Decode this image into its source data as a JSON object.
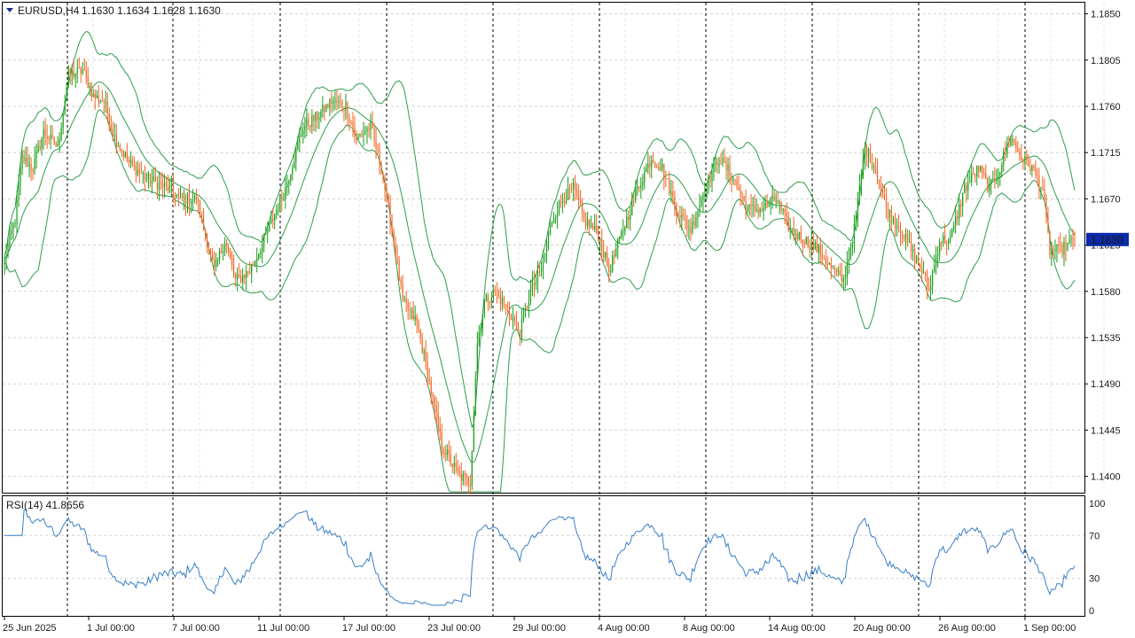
{
  "header": {
    "symbol_tf": "EURUSD,H4",
    "ohlc": "1.1630 1.1634 1.1628 1.1630"
  },
  "rsi": {
    "label": "RSI(14) 41.8656",
    "levels": [
      "100",
      "70",
      "30",
      "0"
    ]
  },
  "price_axis": {
    "labels": [
      "1.1850",
      "1.1805",
      "1.1760",
      "1.1715",
      "1.1670",
      "1.1625",
      "1.1580",
      "1.1535",
      "1.1490",
      "1.1445",
      "1.1400"
    ],
    "current": "1.1630"
  },
  "time_axis": {
    "labels": [
      "25 Jun 2025",
      "1 Jul 00:00",
      "7 Jul 00:00",
      "11 Jul 00:00",
      "17 Jul 00:00",
      "23 Jul 00:00",
      "29 Jul 00:00",
      "4 Aug 00:00",
      "8 Aug 00:00",
      "14 Aug 00:00",
      "20 Aug 00:00",
      "26 Aug 00:00",
      "1 Sep 00:00"
    ]
  },
  "colors": {
    "bull": "#1a9e1a",
    "bear": "#f26522",
    "band": "#2e9e4e",
    "rsi_line": "#3a7fc8",
    "price_tag_bg": "#0a2aa8",
    "frame": "#000000",
    "grid": "#d0d0d0"
  },
  "chart_data": {
    "type": "candlestick",
    "symbol": "EURUSD",
    "timeframe": "H4",
    "ylim": [
      1.1385,
      1.186
    ],
    "price_ticks": [
      1.185,
      1.1805,
      1.176,
      1.1715,
      1.167,
      1.1625,
      1.158,
      1.1535,
      1.149,
      1.1445,
      1.14
    ],
    "anchors": [
      [
        0,
        1.161
      ],
      [
        6,
        1.165
      ],
      [
        10,
        1.171
      ],
      [
        16,
        1.17
      ],
      [
        22,
        1.1735
      ],
      [
        30,
        1.172
      ],
      [
        36,
        1.179
      ],
      [
        44,
        1.1795
      ],
      [
        50,
        1.177
      ],
      [
        56,
        1.1765
      ],
      [
        62,
        1.173
      ],
      [
        70,
        1.1705
      ],
      [
        80,
        1.169
      ],
      [
        92,
        1.168
      ],
      [
        100,
        1.167
      ],
      [
        108,
        1.167
      ],
      [
        118,
        1.16
      ],
      [
        124,
        1.163
      ],
      [
        130,
        1.159
      ],
      [
        138,
        1.16
      ],
      [
        146,
        1.163
      ],
      [
        158,
        1.168
      ],
      [
        168,
        1.174
      ],
      [
        176,
        1.175
      ],
      [
        184,
        1.1765
      ],
      [
        192,
        1.176
      ],
      [
        198,
        1.173
      ],
      [
        206,
        1.174
      ],
      [
        212,
        1.17
      ],
      [
        218,
        1.164
      ],
      [
        224,
        1.157
      ],
      [
        232,
        1.155
      ],
      [
        238,
        1.15
      ],
      [
        246,
        1.143
      ],
      [
        256,
        1.14
      ],
      [
        262,
        1.1395
      ],
      [
        266,
        1.153
      ],
      [
        270,
        1.157
      ],
      [
        276,
        1.158
      ],
      [
        284,
        1.156
      ],
      [
        290,
        1.154
      ],
      [
        296,
        1.158
      ],
      [
        302,
        1.16
      ],
      [
        308,
        1.165
      ],
      [
        314,
        1.167
      ],
      [
        320,
        1.168
      ],
      [
        326,
        1.165
      ],
      [
        334,
        1.1635
      ],
      [
        340,
        1.16
      ],
      [
        348,
        1.164
      ],
      [
        356,
        1.168
      ],
      [
        364,
        1.171
      ],
      [
        370,
        1.17
      ],
      [
        378,
        1.166
      ],
      [
        386,
        1.164
      ],
      [
        394,
        1.168
      ],
      [
        402,
        1.171
      ],
      [
        410,
        1.169
      ],
      [
        418,
        1.166
      ],
      [
        426,
        1.166
      ],
      [
        434,
        1.167
      ],
      [
        442,
        1.164
      ],
      [
        450,
        1.163
      ],
      [
        458,
        1.162
      ],
      [
        466,
        1.16
      ],
      [
        472,
        1.159
      ],
      [
        478,
        1.164
      ],
      [
        484,
        1.172
      ],
      [
        490,
        1.17
      ],
      [
        496,
        1.166
      ],
      [
        504,
        1.164
      ],
      [
        510,
        1.162
      ],
      [
        516,
        1.16
      ],
      [
        520,
        1.158
      ],
      [
        526,
        1.163
      ],
      [
        532,
        1.163
      ],
      [
        540,
        1.168
      ],
      [
        548,
        1.17
      ],
      [
        554,
        1.168
      ],
      [
        560,
        1.17
      ],
      [
        566,
        1.173
      ],
      [
        572,
        1.171
      ],
      [
        578,
        1.17
      ],
      [
        584,
        1.168
      ],
      [
        588,
        1.162
      ],
      [
        594,
        1.162
      ],
      [
        602,
        1.163
      ]
    ],
    "rsi": {
      "period": 14,
      "last": 41.8656,
      "levels": [
        70,
        30
      ],
      "ylim": [
        0,
        100
      ]
    }
  }
}
